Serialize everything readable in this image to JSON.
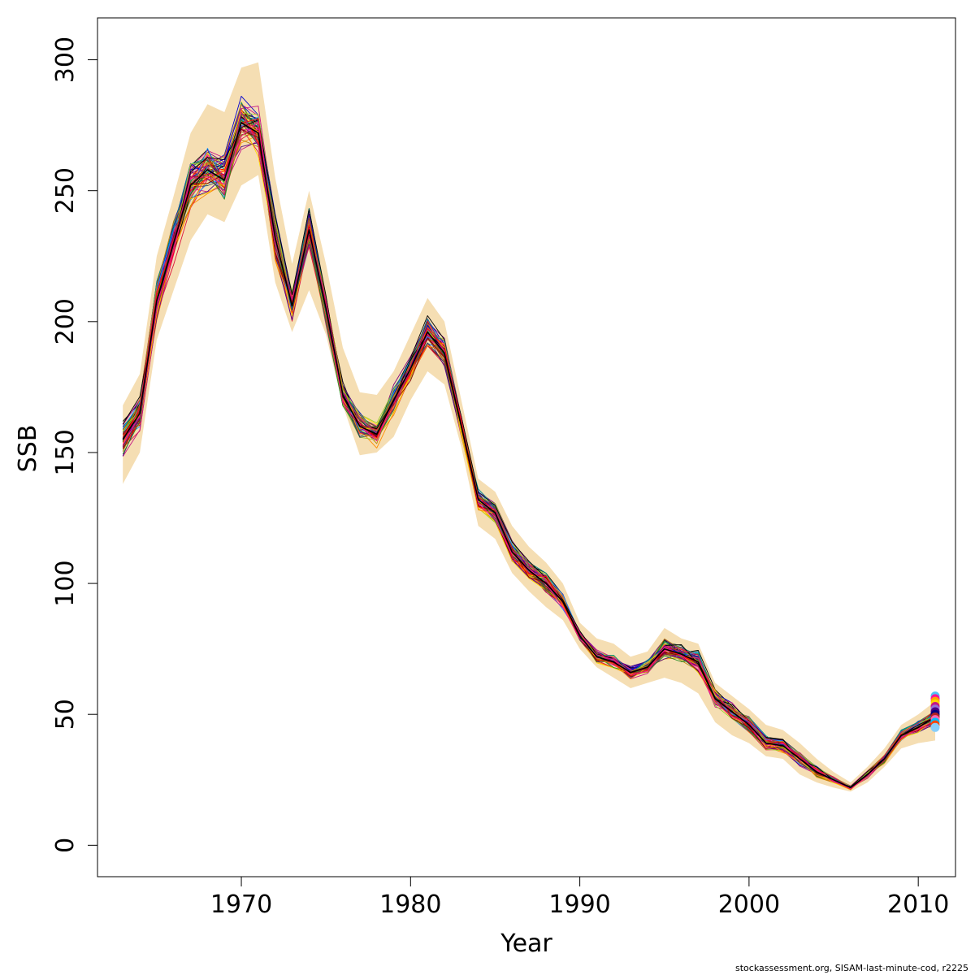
{
  "chart_data": {
    "type": "line",
    "title": "",
    "xlabel": "Year",
    "ylabel": "SSB",
    "xlim": [
      1961.5,
      2012.2
    ],
    "ylim": [
      -12,
      316
    ],
    "x_ticks": [
      1970,
      1980,
      1990,
      2000,
      2010
    ],
    "y_ticks": [
      0,
      50,
      100,
      150,
      200,
      250,
      300
    ],
    "grid": false,
    "legend": "none",
    "years": [
      1963,
      1964,
      1965,
      1966,
      1967,
      1968,
      1969,
      1970,
      1971,
      1972,
      1973,
      1974,
      1975,
      1976,
      1977,
      1978,
      1979,
      1980,
      1981,
      1982,
      1983,
      1984,
      1985,
      1986,
      1987,
      1988,
      1989,
      1990,
      1991,
      1992,
      1993,
      1994,
      1995,
      1996,
      1997,
      1998,
      1999,
      2000,
      2001,
      2002,
      2003,
      2004,
      2005,
      2006,
      2007,
      2008,
      2009,
      2010,
      2011
    ],
    "central_estimate": [
      155,
      165,
      208,
      230,
      252,
      258,
      254,
      276,
      272,
      232,
      206,
      235,
      205,
      172,
      160,
      157,
      170,
      182,
      196,
      188,
      160,
      132,
      127,
      112,
      105,
      100,
      93,
      80,
      72,
      70,
      66,
      68,
      75,
      73,
      70,
      56,
      51,
      46,
      39,
      38,
      33,
      28,
      25,
      22,
      27,
      33,
      42,
      45,
      49
    ],
    "band_upper": [
      168,
      180,
      225,
      248,
      272,
      283,
      280,
      297,
      299,
      255,
      222,
      250,
      222,
      190,
      173,
      172,
      181,
      195,
      209,
      200,
      170,
      140,
      135,
      122,
      114,
      108,
      100,
      85,
      79,
      77,
      72,
      74,
      83,
      79,
      77,
      62,
      57,
      52,
      46,
      44,
      39,
      33,
      28,
      24,
      30,
      37,
      46,
      50,
      55
    ],
    "band_lower": [
      138,
      150,
      193,
      212,
      231,
      241,
      238,
      252,
      256,
      215,
      196,
      212,
      195,
      168,
      149,
      150,
      156,
      170,
      181,
      176,
      152,
      122,
      117,
      104,
      97,
      91,
      86,
      75,
      68,
      64,
      60,
      62,
      64,
      62,
      58,
      47,
      42,
      39,
      34,
      33,
      27,
      24,
      22,
      20.5,
      24,
      30,
      37,
      39,
      40
    ],
    "replicate_count": 60,
    "band_color": "#f5deb3",
    "endpoint_year": 2011,
    "endpoint_values": [
      57,
      56,
      55,
      54,
      53,
      52,
      51,
      50,
      49,
      48,
      47,
      46,
      45
    ],
    "endpoint_colors": [
      "#4fc3f7",
      "#ff1493",
      "#ffa500",
      "#ffd700",
      "#c71585",
      "#9370db",
      "#4b0082",
      "#000080",
      "#b22222",
      "#ff69b4",
      "#00bfff",
      "#ff4500",
      "#87cefa"
    ],
    "line_palette": [
      "#000000",
      "#8b0000",
      "#ff0000",
      "#dc143c",
      "#ff1493",
      "#c71585",
      "#800080",
      "#4b0082",
      "#0000cd",
      "#1e90ff",
      "#008b8b",
      "#228b22",
      "#9acd32",
      "#ffd700",
      "#ff8c00",
      "#8b4513",
      "#2f4f4f",
      "#b8860b"
    ]
  },
  "footer": {
    "credit": "stockassessment.org, SISAM-last-minute-cod, r2225"
  }
}
